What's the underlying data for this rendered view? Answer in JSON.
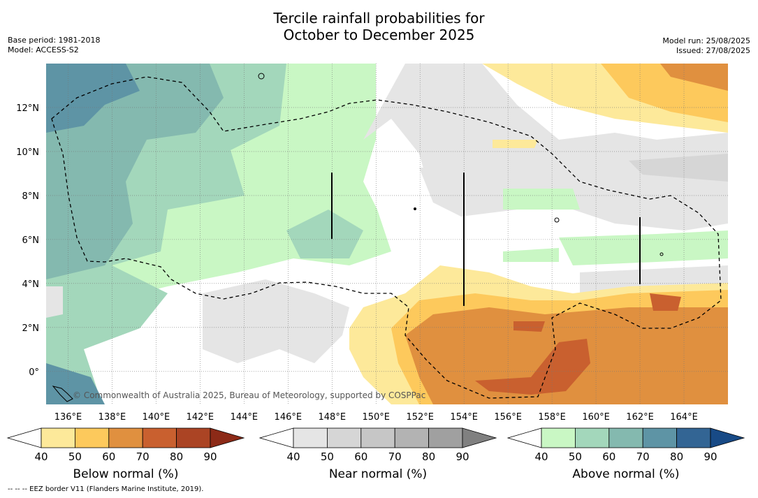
{
  "title": {
    "line1": "Tercile rainfall probabilities for",
    "line2": "October to December 2025"
  },
  "meta": {
    "base_period": "Base period: 1981-2018",
    "model": "Model: ACCESS-S2",
    "model_run": "Model run: 25/08/2025",
    "issued": "Issued: 27/08/2025"
  },
  "map": {
    "lon_range": [
      135,
      166
    ],
    "lat_range": [
      -1.5,
      14
    ],
    "lon_ticks": [
      "136°E",
      "138°E",
      "140°E",
      "142°E",
      "144°E",
      "146°E",
      "148°E",
      "150°E",
      "152°E",
      "154°E",
      "156°E",
      "158°E",
      "160°E",
      "162°E",
      "164°E"
    ],
    "lon_values": [
      136,
      138,
      140,
      142,
      144,
      146,
      148,
      150,
      152,
      154,
      156,
      158,
      160,
      162,
      164
    ],
    "lat_ticks": [
      "12°N",
      "10°N",
      "8°N",
      "6°N",
      "4°N",
      "2°N",
      "0°"
    ],
    "lat_values": [
      12,
      10,
      8,
      6,
      4,
      2,
      0
    ],
    "credit": "© Commonwealth of Australia 2025, Bureau of Meteorology, supported by COSPPac"
  },
  "colorbars": [
    {
      "label": "Below normal (%)",
      "ticks": [
        "40",
        "50",
        "60",
        "70",
        "80",
        "90"
      ],
      "colors": [
        "#ffffff",
        "#fde99a",
        "#fdc95c",
        "#e0903f",
        "#c9602f",
        "#ab4424",
        "#8c2a17"
      ]
    },
    {
      "label": "Near normal (%)",
      "ticks": [
        "40",
        "50",
        "60",
        "70",
        "80",
        "90"
      ],
      "colors": [
        "#ffffff",
        "#e5e5e5",
        "#d6d6d6",
        "#c6c6c6",
        "#b3b3b3",
        "#a0a0a0",
        "#808080"
      ]
    },
    {
      "label": "Above normal (%)",
      "ticks": [
        "40",
        "50",
        "60",
        "70",
        "80",
        "90"
      ],
      "colors": [
        "#ffffff",
        "#c9f7c4",
        "#a3d7bb",
        "#84b9af",
        "#5e94a5",
        "#336594",
        "#184a86"
      ]
    }
  ],
  "footer": "--  --  -- EEZ border V11 (Flanders Marine Institute, 2019)."
}
